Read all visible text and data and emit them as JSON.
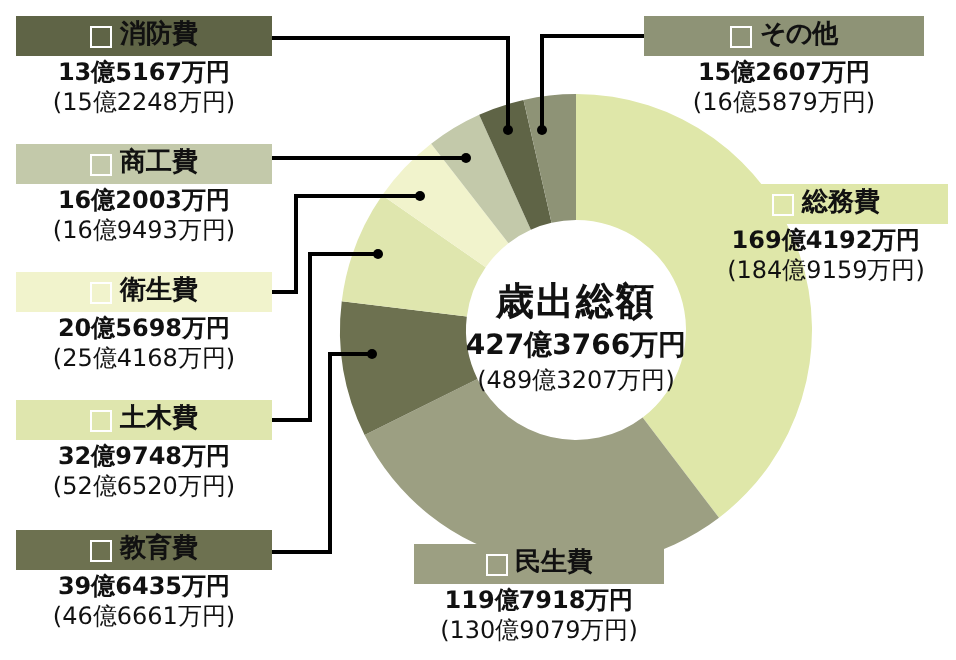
{
  "chart_data": {
    "type": "donut",
    "title": "歳出総額",
    "subtitle": "427億3766万円",
    "categories": [
      "総務費",
      "民生費",
      "教育費",
      "土木費",
      "衛生費",
      "商工費",
      "消防費",
      "その他"
    ],
    "legend": "left",
    "values": [
      39.64,
      28.03,
      9.28,
      7.72,
      4.81,
      3.79,
      3.16,
      3.57
    ],
    "colors": [
      "#dfe7a9",
      "#9c9f82",
      "#6d7150",
      "#dfe6ae",
      "#f1f3cc",
      "#c3c9aa",
      "#5f6446",
      "#8e9376"
    ],
    "annotations": [
      "169億4192万円",
      "119億7918万円",
      "39億6435万円",
      "32億9748万円",
      "20億5698万円",
      "16億2003万円",
      "13億5167万円",
      "15億2607万円",
      "(184億9159万円)",
      "(130億9079万円)",
      "(46億6661万円)",
      "(52億6520万円)",
      "(25億4168万円)",
      "(16億9493万円)",
      "(15億2248万円)",
      "(16億5879万円)",
      "(489億3207万円)"
    ]
  }
}
